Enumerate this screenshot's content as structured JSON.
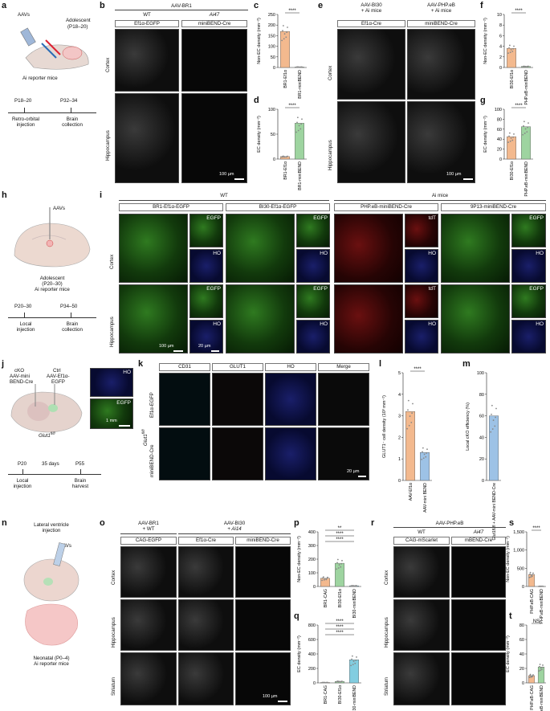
{
  "panels": {
    "a": {
      "label": "a",
      "aavs": "AAVs",
      "adolescent": "Adolescent",
      "age": "(P18–20)",
      "mice": "Ai reporter mice",
      "t1": "P18–20",
      "t2": "P32–34",
      "ev1a": "Retro-orbital",
      "ev1b": "injection",
      "ev2a": "Brain",
      "ev2b": "collection"
    },
    "b": {
      "label": "b",
      "title": "AAV-BR1",
      "wt": "WT",
      "ai": "Ai47",
      "col1": "Ef1α-EGFP",
      "col2": "miniBEND-Cre",
      "row1": "Cortex",
      "row2": "Hippocampus",
      "scale": "100 µm"
    },
    "c": {
      "label": "c"
    },
    "d": {
      "label": "d"
    },
    "e": {
      "label": "e",
      "title1a": "AAV-BI30",
      "title1b": "+ Ai mice",
      "title2a": "AAV-PHP.eB",
      "title2b": "+ Ai mice",
      "col1": "Ef1α-Cre",
      "col2": "miniBEND-Cre",
      "row1": "Cortex",
      "row2": "Hippocampus",
      "scale": "100 µm"
    },
    "f": {
      "label": "f"
    },
    "g": {
      "label": "g"
    },
    "h": {
      "label": "h",
      "aavs": "AAVs",
      "adolescent": "Adolescent",
      "age": "(P20–30)",
      "mice": "Ai reporter mice",
      "t1": "P20–30",
      "t2": "P34–50",
      "ev1a": "Local",
      "ev1b": "injection",
      "ev2a": "Brain",
      "ev2b": "collection"
    },
    "i": {
      "label": "i",
      "wt": "WT",
      "ai": "Ai mice",
      "cols": [
        "BR1-Ef1α-EGFP",
        "BI30-Ef1α-EGFP",
        "PHP.eB-miniBEND-Cre",
        "9P13-miniBEND-Cre"
      ],
      "row1": "Cortex",
      "row2": "Hippocampus",
      "egfp": "EGFP",
      "tdt": "tdT",
      "ho": "HO",
      "scale1": "100 µm",
      "scale2": "20 µm"
    },
    "j": {
      "label": "j",
      "cko1": "cKO",
      "cko2": "AAV-mini",
      "cko3": "BEND-Cre",
      "ctrl1": "Ctrl",
      "ctrl2": "AAV-Ef1α-",
      "ctrl3": "EGFP",
      "genotype": "Glut1",
      "genotype_sup": "fl/fl",
      "ho": "HO",
      "egfp": "EGFP",
      "scale": "1 mm",
      "t1": "P20",
      "tmid": "35 days",
      "t2": "P55",
      "ev1a": "Local",
      "ev1b": "injection",
      "ev2a": "Brain",
      "ev2b": "harvest"
    },
    "k": {
      "label": "k",
      "cols": [
        "CD31",
        "GLUT1",
        "HO",
        "Merge"
      ],
      "row1": "Ef1α-EGFP",
      "row2": "miniBEND-Cre",
      "genotype": "Glut1",
      "genotype_sup": "fl/fl",
      "scale": "20 µm"
    },
    "l": {
      "label": "l"
    },
    "m": {
      "label": "m"
    },
    "n": {
      "label": "n",
      "line1": "Lateral ventricle",
      "line2": "injection",
      "aavs": "AAVs",
      "neonatal": "Neonatal (P0–4)",
      "mice": "Ai reporter mice"
    },
    "o": {
      "label": "o",
      "title1a": "AAV-BR1",
      "title1b": "+ WT",
      "title2a": "AAV-BI30",
      "title2b": "+ Ai14",
      "cols": [
        "CAG-EGFP",
        "Ef1α-Cre",
        "miniBEND-Cre"
      ],
      "rows": [
        "Cortex",
        "Hippocampus",
        "Striatum"
      ],
      "scale": "100 µm"
    },
    "p": {
      "label": "p"
    },
    "q": {
      "label": "q"
    },
    "r": {
      "label": "r",
      "title": "AAV-PHP.eB",
      "wt": "WT",
      "ai": "Ai47",
      "cols": [
        "CAG-mScarlet",
        "mBEND-Cre"
      ],
      "rows": [
        "Cortex",
        "Hippocampus",
        "Striatum"
      ]
    },
    "s": {
      "label": "s"
    },
    "t": {
      "label": "t"
    }
  },
  "chart_data": [
    {
      "id": "c",
      "type": "bar",
      "ylabel": "Non-EC density (mm⁻²)",
      "ylim": [
        0,
        250
      ],
      "yticks": [
        0,
        50,
        100,
        150,
        200,
        250
      ],
      "categories": [
        "BR1-Ef1α",
        "BR1-miniBEND"
      ],
      "values": [
        170,
        2
      ],
      "colors": [
        "#f3b98e",
        "#9ed4a0"
      ],
      "sig": "****"
    },
    {
      "id": "d",
      "type": "bar",
      "ylabel": "EC density (mm⁻²)",
      "ylim": [
        0,
        100
      ],
      "yticks": [
        0,
        50,
        100
      ],
      "categories": [
        "BR1-Ef1α",
        "BR1-miniBEND"
      ],
      "values": [
        5,
        72
      ],
      "colors": [
        "#f3b98e",
        "#9ed4a0"
      ],
      "sig": "****"
    },
    {
      "id": "f",
      "type": "bar",
      "ylabel": "Non-EC density (mm⁻²)",
      "ylim": [
        0,
        10
      ],
      "yticks": [
        0,
        2,
        4,
        6,
        8,
        10
      ],
      "categories": [
        "BI30-Ef1α",
        "PHP.eB-miniBEND"
      ],
      "values": [
        3.6,
        0.2
      ],
      "colors": [
        "#f3b98e",
        "#9ed4a0"
      ],
      "sig": "****"
    },
    {
      "id": "g",
      "type": "bar",
      "ylabel": "EC density (mm⁻²)",
      "ylim": [
        0,
        100
      ],
      "yticks": [
        0,
        20,
        40,
        60,
        80,
        100
      ],
      "categories": [
        "BI30-Ef1α",
        "PHP.eB-miniBEND"
      ],
      "values": [
        45,
        65
      ],
      "colors": [
        "#f3b98e",
        "#9ed4a0"
      ],
      "sig": "****"
    },
    {
      "id": "l",
      "type": "bar",
      "ylabel": "GLUT1⁻ cell density (10³ mm⁻²)",
      "ylim": [
        0,
        5
      ],
      "yticks": [
        0,
        1,
        2,
        3,
        4,
        5
      ],
      "categories": [
        "AAV-Ef1α",
        "AAV-mini BEND"
      ],
      "values": [
        3.2,
        1.3
      ],
      "colors": [
        "#f3b98e",
        "#9dc2e6"
      ],
      "sig": "****"
    },
    {
      "id": "m",
      "type": "bar",
      "ylabel": "Local cKO efficiency (%)",
      "ylim": [
        0,
        100
      ],
      "yticks": [
        0,
        20,
        40,
        60,
        80,
        100
      ],
      "categories": [
        "Glut1fl/fl + AAV-mini BEND-Cre"
      ],
      "values": [
        60
      ],
      "colors": [
        "#9dc2e6"
      ],
      "sig": ""
    },
    {
      "id": "p",
      "type": "bar",
      "ylabel": "Non-EC density (mm⁻²)",
      "ylim": [
        0,
        400
      ],
      "yticks": [
        0,
        100,
        200,
        300,
        400
      ],
      "categories": [
        "BR1-CAG",
        "BI30-Ef1α",
        "BI30-miniBEND"
      ],
      "values": [
        60,
        170,
        5
      ],
      "colors": [
        "#f3b98e",
        "#9ed4a0",
        "#82cde0"
      ],
      "sigs": [
        "**",
        "****",
        "****"
      ]
    },
    {
      "id": "q",
      "type": "bar",
      "ylabel": "EC density (mm⁻²)",
      "ylim": [
        0,
        800
      ],
      "yticks": [
        0,
        200,
        400,
        600,
        800
      ],
      "categories": [
        "BR1-CAG",
        "BI30-Ef1α",
        "BI30-miniBEND"
      ],
      "values": [
        5,
        20,
        320
      ],
      "colors": [
        "#f3b98e",
        "#9ed4a0",
        "#82cde0"
      ],
      "sigs": [
        "****",
        "****",
        "****"
      ]
    },
    {
      "id": "s",
      "type": "bar",
      "ylabel": "Non-EC density (mm⁻²)",
      "ylim": [
        0,
        1500
      ],
      "yticks": [
        0,
        500,
        1000,
        1500
      ],
      "categories": [
        "PHP.eB-CAG",
        "PHP.eB-miniBEND"
      ],
      "values": [
        330,
        5
      ],
      "colors": [
        "#f3b98e",
        "#9ed4a0"
      ],
      "sig": "****"
    },
    {
      "id": "t",
      "type": "bar",
      "ylabel": "EC density (mm⁻²)",
      "ylim": [
        0,
        80
      ],
      "yticks": [
        0,
        20,
        40,
        60,
        80
      ],
      "categories": [
        "PHP.eB-CAG",
        "PHP.eB-miniBEND"
      ],
      "values": [
        10,
        22
      ],
      "colors": [
        "#f3b98e",
        "#9ed4a0"
      ],
      "sig": "NS"
    }
  ]
}
